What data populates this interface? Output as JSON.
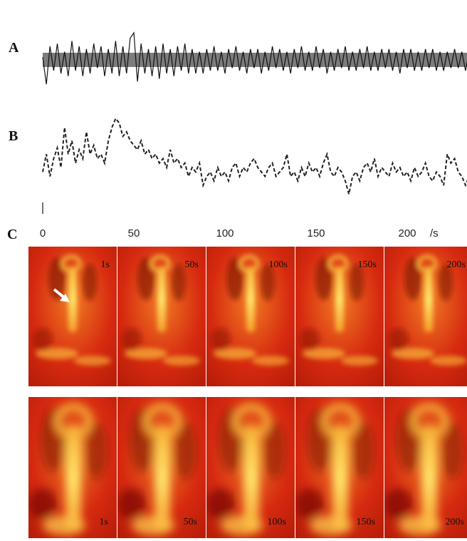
{
  "panels": {
    "a": "A",
    "b": "B",
    "c": "C"
  },
  "axis": {
    "ticks": [
      "0",
      "50",
      "100",
      "150",
      "200"
    ],
    "unit": "/s"
  },
  "row1_times": [
    "1s",
    "50s",
    "100s",
    "150s",
    "200s"
  ],
  "row2_times": [
    "1s",
    "50s",
    "100s",
    "150s",
    "200s"
  ],
  "colors": {
    "trace_a": "#111111",
    "trace_b": "#222222",
    "image_base": "#d62a10",
    "image_hot": "#ffe46a"
  },
  "chart_data": [
    {
      "type": "line",
      "name": "A",
      "x_range": [
        0,
        235
      ],
      "y_range": [
        -1,
        1
      ],
      "x": [
        0,
        2,
        4,
        6,
        8,
        10,
        12,
        14,
        16,
        18,
        20,
        22,
        24,
        26,
        28,
        30,
        32,
        34,
        36,
        38,
        40,
        42,
        44,
        46,
        48,
        50,
        52,
        54,
        56,
        58,
        60,
        62,
        64,
        66,
        68,
        70,
        72,
        74,
        76,
        78,
        80,
        82,
        84,
        86,
        88,
        90,
        92,
        94,
        96,
        98,
        100,
        102,
        104,
        106,
        108,
        110,
        112,
        114,
        116,
        118,
        120,
        122,
        124,
        126,
        128,
        130,
        132,
        134,
        136,
        138,
        140,
        142,
        144,
        146,
        148,
        150,
        152,
        154,
        156,
        158,
        160,
        162,
        164,
        166,
        168,
        170,
        172,
        174,
        176,
        178,
        180,
        182,
        184,
        186,
        188,
        190,
        192,
        194,
        196,
        198,
        200,
        202,
        204,
        206,
        208,
        210,
        212,
        214,
        216,
        218,
        220,
        222,
        224,
        226,
        228,
        230,
        232,
        234
      ],
      "y": [
        0.1,
        -0.9,
        0.5,
        -0.4,
        0.6,
        -0.5,
        0.3,
        -0.6,
        0.7,
        -0.4,
        0.5,
        -0.6,
        0.4,
        -0.5,
        0.6,
        -0.3,
        0.5,
        -0.6,
        0.4,
        -0.5,
        0.7,
        -0.6,
        0.5,
        -0.5,
        0.8,
        1.0,
        -0.8,
        0.6,
        -0.5,
        0.4,
        -0.6,
        0.5,
        -0.7,
        0.6,
        -0.5,
        0.4,
        -0.6,
        0.5,
        -0.4,
        0.6,
        -0.5,
        0.4,
        -0.5,
        0.3,
        -0.5,
        0.4,
        -0.4,
        0.5,
        -0.4,
        0.3,
        -0.5,
        0.4,
        -0.3,
        0.5,
        -0.4,
        0.3,
        -0.5,
        0.4,
        -0.3,
        0.4,
        -0.5,
        0.3,
        -0.4,
        0.5,
        -0.3,
        0.4,
        -0.4,
        0.3,
        -0.5,
        0.4,
        -0.3,
        0.5,
        -0.4,
        0.3,
        -0.4,
        0.5,
        -0.3,
        0.4,
        -0.5,
        0.3,
        -0.4,
        0.4,
        -0.3,
        0.5,
        -0.4,
        0.3,
        -0.4,
        0.4,
        -0.3,
        0.5,
        -0.4,
        0.3,
        -0.4,
        0.4,
        -0.3,
        0.4,
        -0.4,
        0.3,
        -0.5,
        0.4,
        -0.3,
        0.4,
        -0.4,
        0.3,
        -0.4,
        0.4,
        -0.3,
        0.4,
        -0.4,
        0.3,
        -0.4,
        0.3,
        -0.3,
        0.4,
        -0.3,
        0.3,
        -0.4,
        0.3
      ]
    },
    {
      "type": "line",
      "name": "B",
      "x_range": [
        0,
        235
      ],
      "y_range": [
        0,
        1
      ],
      "x": [
        0,
        2,
        4,
        6,
        8,
        10,
        12,
        14,
        16,
        18,
        20,
        22,
        24,
        26,
        28,
        30,
        32,
        34,
        36,
        38,
        40,
        42,
        44,
        46,
        48,
        50,
        52,
        54,
        56,
        58,
        60,
        62,
        64,
        66,
        68,
        70,
        72,
        74,
        76,
        78,
        80,
        82,
        84,
        86,
        88,
        90,
        92,
        94,
        96,
        98,
        100,
        102,
        104,
        106,
        108,
        110,
        112,
        114,
        116,
        118,
        120,
        122,
        124,
        126,
        128,
        130,
        132,
        134,
        136,
        138,
        140,
        142,
        144,
        146,
        148,
        150,
        152,
        154,
        156,
        158,
        160,
        162,
        164,
        166,
        168,
        170,
        172,
        174,
        176,
        178,
        180,
        182,
        184,
        186,
        188,
        190,
        192,
        194,
        196,
        198,
        200,
        202,
        204,
        206,
        208,
        210,
        212,
        214,
        216,
        218,
        220,
        222,
        224,
        226,
        228,
        230,
        232,
        234
      ],
      "y": [
        0.35,
        0.55,
        0.3,
        0.5,
        0.62,
        0.4,
        0.85,
        0.55,
        0.7,
        0.45,
        0.6,
        0.5,
        0.8,
        0.55,
        0.65,
        0.5,
        0.55,
        0.45,
        0.7,
        0.85,
        0.95,
        0.9,
        0.75,
        0.8,
        0.7,
        0.65,
        0.6,
        0.7,
        0.55,
        0.6,
        0.5,
        0.55,
        0.45,
        0.5,
        0.4,
        0.6,
        0.45,
        0.5,
        0.4,
        0.45,
        0.3,
        0.4,
        0.35,
        0.45,
        0.2,
        0.3,
        0.35,
        0.25,
        0.4,
        0.3,
        0.35,
        0.25,
        0.4,
        0.45,
        0.3,
        0.4,
        0.35,
        0.45,
        0.5,
        0.4,
        0.35,
        0.3,
        0.4,
        0.45,
        0.3,
        0.35,
        0.4,
        0.55,
        0.3,
        0.35,
        0.25,
        0.4,
        0.3,
        0.45,
        0.35,
        0.4,
        0.3,
        0.45,
        0.55,
        0.35,
        0.3,
        0.4,
        0.35,
        0.25,
        0.1,
        0.3,
        0.35,
        0.25,
        0.4,
        0.45,
        0.35,
        0.5,
        0.3,
        0.4,
        0.35,
        0.3,
        0.45,
        0.35,
        0.4,
        0.3,
        0.35,
        0.25,
        0.4,
        0.3,
        0.35,
        0.45,
        0.3,
        0.25,
        0.35,
        0.3,
        0.2,
        0.55,
        0.45,
        0.5,
        0.35,
        0.3,
        0.2,
        0.3
      ]
    }
  ]
}
